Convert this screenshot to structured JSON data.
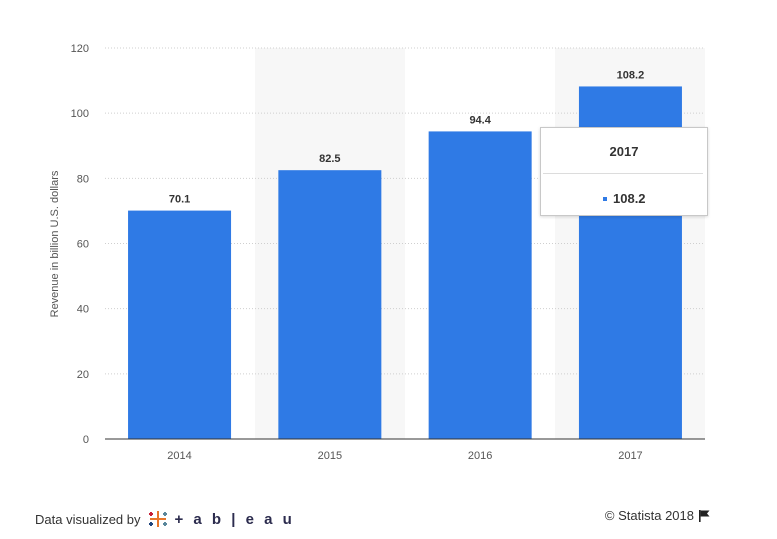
{
  "chart_data": {
    "type": "bar",
    "categories": [
      "2014",
      "2015",
      "2016",
      "2017"
    ],
    "values": [
      70.1,
      82.5,
      94.4,
      108.2
    ],
    "data_labels": [
      "70.1",
      "82.5",
      "94.4",
      "108.2"
    ],
    "title": "",
    "xlabel": "",
    "ylabel": "Revenue in billion U.S. dollars",
    "ylim": [
      0,
      120
    ],
    "yticks": [
      0,
      20,
      40,
      60,
      80,
      100,
      120
    ],
    "grid": true,
    "bar_color": "#2f7ae5",
    "alternate_band_color": "#f7f7f7"
  },
  "tooltip": {
    "title": "2017",
    "value": "108.2",
    "dot_color": "#2f7ae5"
  },
  "footer": {
    "data_visualized_by": "Data visualized by",
    "tableau_brand": "+ a b | e a u",
    "copyright": "© Statista 2018"
  },
  "icons": {
    "tableau_logo": "tableau-logo-icon",
    "flag": "flag-icon"
  }
}
